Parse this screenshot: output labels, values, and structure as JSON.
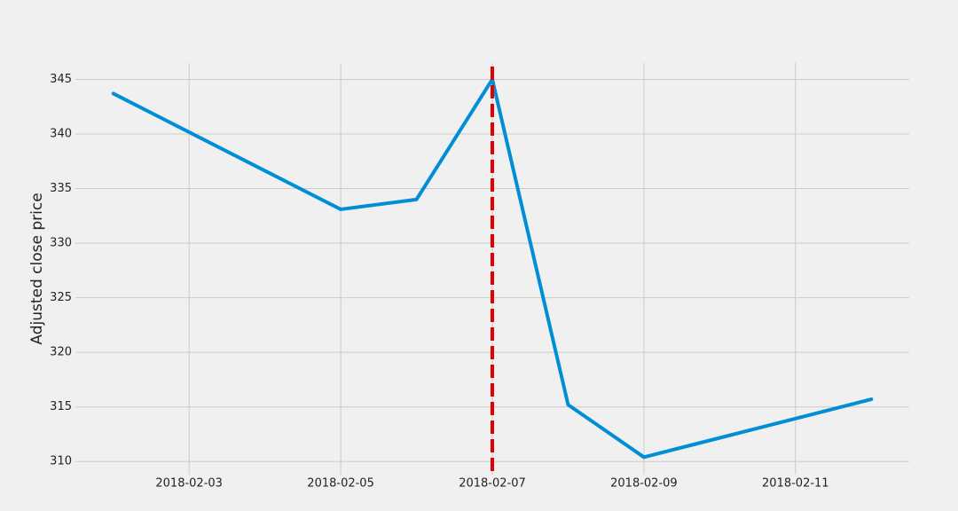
{
  "chart_data": {
    "type": "line",
    "y_label": "Adjusted close price",
    "x": [
      "2018-02-02",
      "2018-02-05",
      "2018-02-06",
      "2018-02-07",
      "2018-02-08",
      "2018-02-09",
      "2018-02-12"
    ],
    "values": [
      343.7,
      333.1,
      334.0,
      345.0,
      315.2,
      310.4,
      315.7
    ],
    "color": "#008fd5",
    "xlim": [
      "2018-02-01T12:00",
      "2018-02-12T12:00"
    ],
    "xticks": [
      "2018-02-03",
      "2018-02-05",
      "2018-02-07",
      "2018-02-09",
      "2018-02-11"
    ],
    "ylim": [
      308.8,
      346.5
    ],
    "yticks": [
      310,
      315,
      320,
      325,
      330,
      335,
      340,
      345
    ],
    "vline": {
      "x": "2018-02-07",
      "color": "#e50000"
    },
    "grid": true
  }
}
